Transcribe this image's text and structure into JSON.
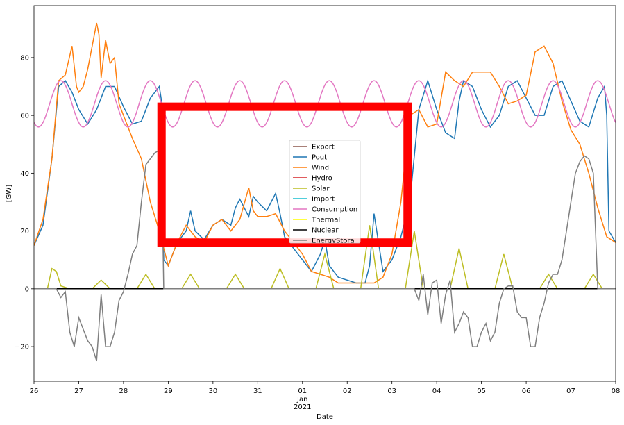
{
  "chart_data": {
    "type": "line",
    "xlabel": "Date",
    "ylabel": "[GW]",
    "xlim": [
      0,
      13
    ],
    "ylim": [
      -32,
      98
    ],
    "x_ticks": [
      {
        "x": 0,
        "label": "26"
      },
      {
        "x": 1,
        "label": "27"
      },
      {
        "x": 2,
        "label": "28"
      },
      {
        "x": 3,
        "label": "29"
      },
      {
        "x": 4,
        "label": "30"
      },
      {
        "x": 5,
        "label": "31"
      },
      {
        "x": 6,
        "label": "01"
      },
      {
        "x": 7,
        "label": "02"
      },
      {
        "x": 8,
        "label": "03"
      },
      {
        "x": 9,
        "label": "04"
      },
      {
        "x": 10,
        "label": "05"
      },
      {
        "x": 11,
        "label": "06"
      },
      {
        "x": 12,
        "label": "07"
      },
      {
        "x": 13,
        "label": "08"
      }
    ],
    "x_sublabel_month": "Jan",
    "x_sublabel_year": "2021",
    "y_ticks": [
      -20,
      0,
      20,
      40,
      60,
      80
    ],
    "legend_placement": "center",
    "grid": false,
    "series": [
      {
        "name": "Export",
        "color": "#8c564b"
      },
      {
        "name": "Pout",
        "color": "#1f77b4",
        "x": [
          0,
          0.2,
          0.4,
          0.55,
          0.7,
          0.85,
          1.0,
          1.2,
          1.4,
          1.6,
          1.8,
          2.0,
          2.2,
          2.4,
          2.6,
          2.8,
          2.85,
          2.9,
          3.0,
          3.2,
          3.4,
          3.5,
          3.6,
          3.8,
          4.0,
          4.2,
          4.4,
          4.5,
          4.6,
          4.8,
          4.9,
          5.0,
          5.2,
          5.4,
          5.5,
          5.6,
          5.8,
          6.0,
          6.2,
          6.4,
          6.5,
          6.6,
          6.8,
          7.0,
          7.2,
          7.4,
          7.5,
          7.6,
          7.8,
          8.0,
          8.2,
          8.4,
          8.6,
          8.8,
          9.0,
          9.2,
          9.4,
          9.5,
          9.6,
          9.8,
          10.0,
          10.2,
          10.4,
          10.6,
          10.8,
          11.0,
          11.2,
          11.4,
          11.6,
          11.8,
          12.0,
          12.2,
          12.4,
          12.6,
          12.75,
          12.8,
          12.85,
          13.0
        ],
        "y": [
          15,
          22,
          45,
          70,
          72,
          68,
          62,
          57,
          62,
          70,
          70,
          63,
          57,
          58,
          66,
          70,
          65,
          10,
          8,
          16,
          20,
          27,
          20,
          17,
          22,
          24,
          22,
          28,
          31,
          25,
          32,
          30,
          27,
          33,
          26,
          18,
          14,
          10,
          6,
          12,
          17,
          8,
          4,
          3,
          2,
          2,
          8,
          26,
          6,
          10,
          18,
          30,
          62,
          72,
          62,
          54,
          52,
          65,
          72,
          70,
          62,
          56,
          60,
          70,
          72,
          66,
          60,
          60,
          70,
          72,
          65,
          58,
          56,
          66,
          70,
          60,
          20,
          16
        ]
      },
      {
        "name": "Wind",
        "color": "#ff7f0e",
        "x": [
          0,
          0.2,
          0.4,
          0.55,
          0.7,
          0.85,
          0.95,
          1.0,
          1.1,
          1.2,
          1.4,
          1.45,
          1.5,
          1.6,
          1.7,
          1.8,
          1.9,
          2.0,
          2.2,
          2.4,
          2.6,
          2.8,
          3.0,
          3.2,
          3.4,
          3.6,
          3.8,
          4.0,
          4.2,
          4.4,
          4.6,
          4.8,
          4.9,
          5.0,
          5.2,
          5.4,
          5.6,
          5.8,
          6.0,
          6.2,
          6.4,
          6.6,
          6.8,
          7.0,
          7.2,
          7.4,
          7.6,
          7.8,
          8.0,
          8.2,
          8.4,
          8.6,
          8.8,
          9.0,
          9.2,
          9.4,
          9.6,
          9.8,
          10.0,
          10.2,
          10.4,
          10.6,
          10.8,
          11.0,
          11.2,
          11.4,
          11.6,
          11.8,
          12.0,
          12.2,
          12.4,
          12.6,
          12.8,
          13.0
        ],
        "y": [
          15,
          24,
          45,
          72,
          74,
          84,
          70,
          68,
          70,
          76,
          92,
          88,
          73,
          86,
          78,
          80,
          64,
          60,
          52,
          45,
          30,
          20,
          8,
          16,
          22,
          18,
          16,
          22,
          24,
          20,
          24,
          35,
          27,
          25,
          25,
          26,
          20,
          16,
          12,
          6,
          5,
          4,
          2,
          2,
          2,
          2,
          2,
          4,
          12,
          30,
          60,
          62,
          56,
          57,
          75,
          72,
          70,
          75,
          75,
          75,
          70,
          64,
          65,
          67,
          82,
          84,
          78,
          65,
          55,
          50,
          40,
          28,
          18,
          16
        ]
      },
      {
        "name": "Hydro",
        "color": "#d62728",
        "x": [
          0,
          13
        ],
        "y": [
          0,
          0
        ]
      },
      {
        "name": "Solar",
        "color": "#bcbd22",
        "x": [
          0,
          0.3,
          0.4,
          0.5,
          0.6,
          0.8,
          1.3,
          1.5,
          1.7,
          2.3,
          2.5,
          2.7,
          3.3,
          3.5,
          3.7,
          4.3,
          4.5,
          4.7,
          5.3,
          5.5,
          5.7,
          6.3,
          6.5,
          6.7,
          7.3,
          7.5,
          7.7,
          8.3,
          8.5,
          8.7,
          9.3,
          9.5,
          9.7,
          10.3,
          10.5,
          10.7,
          11.3,
          11.5,
          11.7,
          12.3,
          12.5,
          12.7,
          13.0
        ],
        "y": [
          0,
          0,
          7,
          6,
          1,
          0,
          0,
          3,
          0,
          0,
          5,
          0,
          0,
          5,
          0,
          0,
          5,
          0,
          0,
          7,
          0,
          0,
          12,
          0,
          0,
          22,
          0,
          0,
          20,
          0,
          0,
          14,
          0,
          0,
          12,
          0,
          0,
          5,
          0,
          0,
          5,
          0,
          0
        ]
      },
      {
        "name": "Import",
        "color": "#17becf",
        "x": [
          0,
          13
        ],
        "y": [
          0,
          0
        ]
      },
      {
        "name": "Consumption",
        "color": "#e377c2",
        "period": 1.0,
        "mean": 64,
        "amplitude": 8,
        "phase_peak": 0.6
      },
      {
        "name": "Thermal",
        "color": "#ffff00",
        "x": [
          0,
          13
        ],
        "y": [
          0,
          0
        ]
      },
      {
        "name": "Nuclear",
        "color": "#000000",
        "x": [
          0,
          13
        ],
        "y": [
          0,
          0
        ]
      },
      {
        "name": "EnergyStora",
        "color": "#7f7f7f",
        "x": [
          0,
          0.5,
          0.6,
          0.7,
          0.8,
          0.9,
          1.0,
          1.1,
          1.2,
          1.3,
          1.4,
          1.5,
          1.6,
          1.7,
          1.8,
          1.9,
          2.0,
          2.1,
          2.2,
          2.3,
          2.4,
          2.5,
          2.6,
          2.7,
          2.8,
          2.85,
          2.9,
          3.0,
          8.5,
          8.6,
          8.7,
          8.8,
          8.9,
          9.0,
          9.1,
          9.2,
          9.3,
          9.4,
          9.5,
          9.6,
          9.7,
          9.8,
          9.9,
          10.0,
          10.1,
          10.2,
          10.3,
          10.4,
          10.5,
          10.6,
          10.7,
          10.8,
          10.9,
          11.0,
          11.1,
          11.2,
          11.3,
          11.4,
          11.5,
          11.6,
          11.7,
          11.8,
          11.9,
          12.0,
          12.1,
          12.2,
          12.3,
          12.4,
          12.5,
          12.6,
          12.7,
          12.75,
          12.8,
          12.85,
          13.0
        ],
        "y": [
          0,
          0,
          -3,
          -1,
          -15,
          -20,
          -10,
          -14,
          -18,
          -20,
          -25,
          -2,
          -20,
          -20,
          -15,
          -4,
          -1,
          5,
          12,
          15,
          30,
          43,
          45,
          47,
          48,
          47,
          0,
          0,
          0,
          -4,
          5,
          -9,
          2,
          3,
          -12,
          -2,
          3,
          -15,
          -12,
          -8,
          -10,
          -20,
          -20,
          -15,
          -12,
          -18,
          -15,
          -5,
          0,
          1,
          1,
          -8,
          -10,
          -10,
          -20,
          -20,
          -10,
          -5,
          2,
          5,
          5,
          10,
          20,
          30,
          40,
          44,
          46,
          45,
          40,
          0,
          0,
          0,
          0,
          0,
          0
        ]
      }
    ],
    "annotation_box": {
      "x0": 2.85,
      "x1": 8.35,
      "y0": 16,
      "y1": 63,
      "color": "#ff0000"
    }
  }
}
